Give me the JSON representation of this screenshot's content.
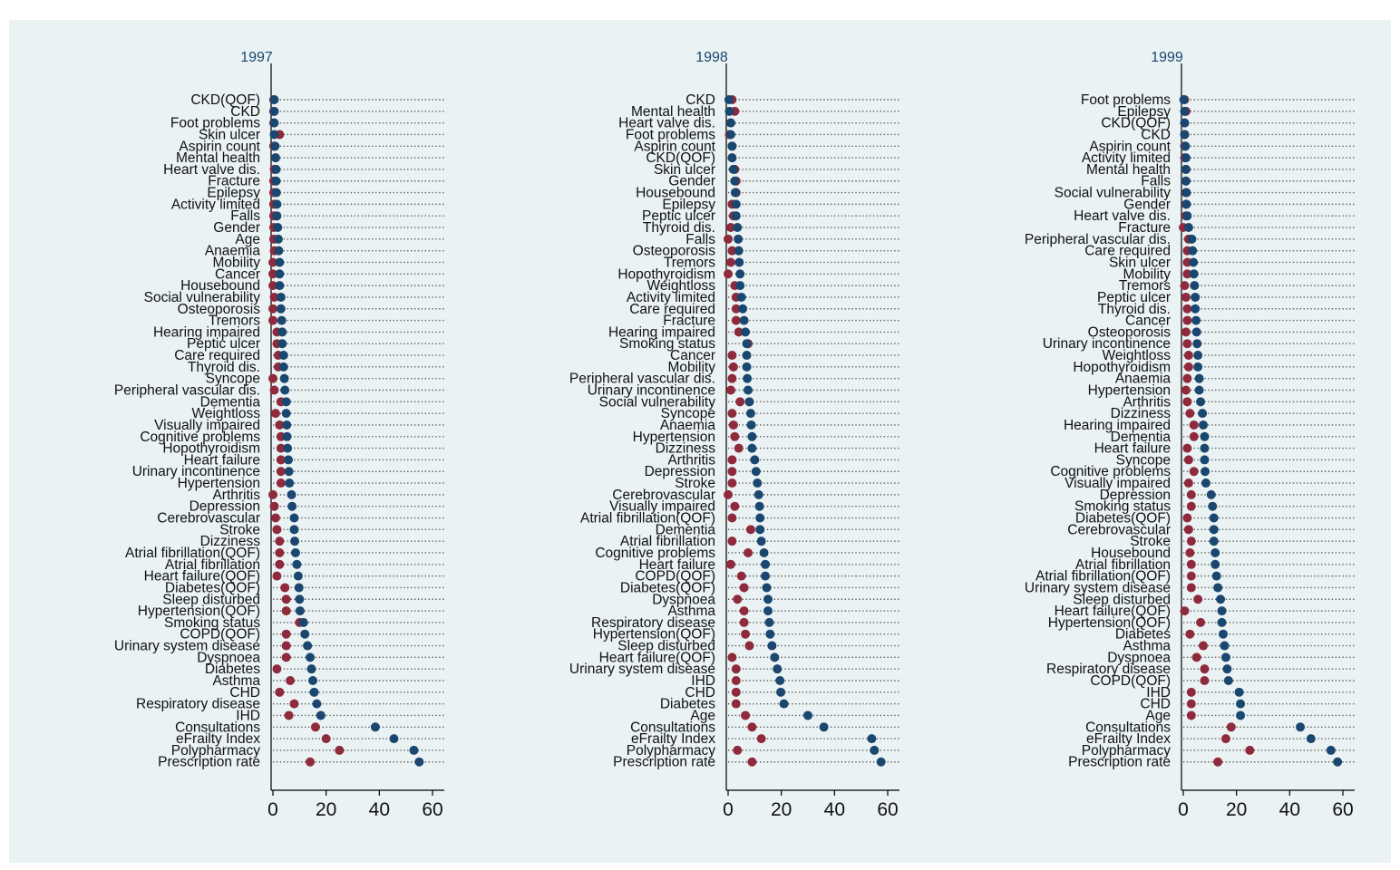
{
  "header_text": "",
  "chart_data": {
    "type": "dot",
    "xlim": [
      0,
      60
    ],
    "xticks": [
      "0",
      "20",
      "40",
      "60"
    ],
    "series_colors": {
      "marker_a": "#8f2a3c",
      "marker_b": "#1a476f"
    },
    "panels": [
      {
        "title": "1997",
        "categories": [
          "CKD(QOF)",
          "CKD",
          "Foot problems",
          "Skin ulcer",
          "Aspirin count",
          "Mental health",
          "Heart valve dis.",
          "Fracture",
          "Epilepsy",
          "Activity limited",
          "Falls",
          "Gender",
          "Age",
          "Anaemia",
          "Mobility",
          "Cancer",
          "Housebound",
          "Social vulnerability",
          "Osteoporosis",
          "Tremors",
          "Hearing impaired",
          "Peptic ulcer",
          "Care required",
          "Thyroid dis.",
          "Syncope",
          "Peripheral vascular dis.",
          "Dementia",
          "Weightloss",
          "Visually impaired",
          "Cognitive problems",
          "Hopothyroidism",
          "Heart failure",
          "Urinary incontinence",
          "Hypertension",
          "Arthritis",
          "Depression",
          "Cerebrovascular",
          "Stroke",
          "Dizziness",
          "Atrial fibrillation(QOF)",
          "Atrial fibrillation",
          "Heart failure(QOF)",
          "Diabetes(QOF)",
          "Sleep disturbed",
          "Hypertension(QOF)",
          "Smoking status",
          "COPD(QOF)",
          "Urinary system disease",
          "Dyspnoea",
          "Diabetes",
          "Asthma",
          "CHD",
          "Respiratory disease",
          "IHD",
          "Consultations",
          "eFrailty Index",
          "Polypharmacy",
          "Prescription rate"
        ],
        "values_a": [
          0.3,
          0.3,
          0.3,
          2.5,
          0.3,
          1,
          0.5,
          0.3,
          0.3,
          0.3,
          0.3,
          0.3,
          0.3,
          0.5,
          0,
          0,
          0,
          0.5,
          0,
          0,
          1.5,
          1.5,
          2,
          2,
          0,
          0.5,
          3,
          1,
          2.5,
          3,
          3,
          3,
          3,
          3,
          0,
          0.5,
          1,
          1.5,
          2.5,
          2.5,
          2.5,
          1.5,
          4.5,
          5,
          5,
          10,
          5,
          5,
          5,
          1.5,
          6.5,
          2.5,
          8,
          6,
          16,
          20,
          25,
          14
        ],
        "values_b": [
          0.5,
          0.5,
          0.5,
          0.5,
          0.8,
          1,
          1.2,
          1.2,
          1.3,
          1.5,
          1.5,
          1.8,
          2,
          2.2,
          2.5,
          2.5,
          2.5,
          3,
          3,
          3.3,
          3.5,
          3.5,
          4,
          4,
          4.3,
          4.5,
          5,
          5,
          5.2,
          5.3,
          5.5,
          5.8,
          6,
          6.2,
          7,
          7.2,
          8,
          8,
          8.2,
          8.5,
          9,
          9.5,
          9.8,
          10,
          10.2,
          11.5,
          12,
          13,
          14,
          14.5,
          15,
          15.5,
          16.5,
          18,
          38.5,
          45.5,
          53,
          55
        ]
      },
      {
        "title": "1998",
        "categories": [
          "CKD",
          "Mental health",
          "Heart valve dis.",
          "Foot problems",
          "Aspirin count",
          "CKD(QOF)",
          "Skin ulcer",
          "Gender",
          "Housebound",
          "Epilepsy",
          "Peptic ulcer",
          "Thyroid dis.",
          "Falls",
          "Osteoporosis",
          "Tremors",
          "Hopothyroidism",
          "Weightloss",
          "Activity limited",
          "Care required",
          "Fracture",
          "Hearing impaired",
          "Smoking status",
          "Cancer",
          "Mobility",
          "Peripheral vascular dis.",
          "Urinary incontinence",
          "Social vulnerability",
          "Syncope",
          "Anaemia",
          "Hypertension",
          "Dizziness",
          "Arthritis",
          "Depression",
          "Stroke",
          "Cerebrovascular",
          "Visually impaired",
          "Atrial fibrillation(QOF)",
          "Dementia",
          "Atrial fibrillation",
          "Cognitive problems",
          "Heart failure",
          "COPD(QOF)",
          "Diabetes(QOF)",
          "Dyspnoea",
          "Asthma",
          "Respiratory disease",
          "Hypertension(QOF)",
          "Sleep disturbed",
          "Heart failure(QOF)",
          "Urinary system disease",
          "IHD",
          "CHD",
          "Diabetes",
          "Age",
          "Consultations",
          "eFrailty Index",
          "Polypharmacy",
          "Prescription rate"
        ],
        "values_a": [
          1.5,
          2.5,
          1,
          0.5,
          1.5,
          1.5,
          2.5,
          3,
          3,
          1.5,
          2,
          1,
          0,
          1.5,
          1,
          0,
          2.5,
          3,
          3,
          3,
          4,
          7.5,
          1.5,
          2,
          1.5,
          1,
          4.5,
          1.5,
          2,
          2.5,
          4,
          1.5,
          1.5,
          1.5,
          0,
          2.5,
          1.5,
          8.5,
          1.5,
          7.5,
          1,
          5,
          6,
          3.5,
          6,
          6,
          6.5,
          8,
          1.5,
          3,
          3,
          3,
          3,
          6.5,
          9,
          12.5,
          3.5,
          9
        ],
        "values_b": [
          0.3,
          0.5,
          1,
          1,
          1.5,
          1.5,
          2,
          2.5,
          2.7,
          3,
          3,
          3.5,
          3.8,
          4,
          4.2,
          4.5,
          4.5,
          5,
          5.5,
          6,
          6.5,
          7,
          7,
          7,
          7.2,
          7.5,
          8,
          8.5,
          8.7,
          9,
          9,
          10,
          10.5,
          11,
          11.5,
          11.8,
          12,
          12,
          12.5,
          13.5,
          14,
          14,
          14.5,
          15,
          15,
          15.5,
          15.8,
          16.5,
          17.5,
          18.5,
          19.5,
          19.8,
          21,
          30,
          36,
          54,
          55,
          57.5
        ]
      },
      {
        "title": "1999",
        "categories": [
          "Foot problems",
          "Epilepsy",
          "CKD(QOF)",
          "CKD",
          "Aspirin count",
          "Activity limited",
          "Mental health",
          "Falls",
          "Social vulnerability",
          "Gender",
          "Heart valve dis.",
          "Fracture",
          "Peripheral vascular dis.",
          "Care required",
          "Skin ulcer",
          "Mobility",
          "Tremors",
          "Peptic ulcer",
          "Thyroid dis.",
          "Cancer",
          "Osteoporosis",
          "Urinary incontinence",
          "Weightloss",
          "Hopothyroidism",
          "Anaemia",
          "Hypertension",
          "Arthritis",
          "Dizziness",
          "Hearing impaired",
          "Dementia",
          "Heart failure",
          "Syncope",
          "Cognitive problems",
          "Visually impaired",
          "Depression",
          "Smoking status",
          "Diabetes(QOF)",
          "Cerebrovascular",
          "Stroke",
          "Housebound",
          "Atrial fibrillation",
          "Atrial fibrillation(QOF)",
          "Urinary system disease",
          "Sleep disturbed",
          "Heart failure(QOF)",
          "Hypertension(QOF)",
          "Diabetes",
          "Asthma",
          "Dyspnoea",
          "Respiratory disease",
          "COPD(QOF)",
          "IHD",
          "CHD",
          "Age",
          "Consultations",
          "eFrailty Index",
          "Polypharmacy",
          "Prescription rate"
        ],
        "values_a": [
          0.5,
          1,
          0.5,
          0.5,
          0.5,
          0.5,
          1,
          1,
          1,
          1,
          1,
          0,
          2,
          1.5,
          1.5,
          1.5,
          0.5,
          1,
          1.5,
          1.5,
          1,
          1.5,
          2,
          2,
          1.5,
          1,
          1.5,
          2.5,
          4,
          4,
          1.5,
          2,
          4,
          2,
          3,
          3,
          1.5,
          2,
          3,
          2.5,
          3,
          3,
          3,
          5.5,
          0.5,
          6.5,
          2.5,
          7.5,
          5,
          8,
          8,
          3,
          3,
          3,
          18,
          16,
          25,
          13
        ],
        "values_b": [
          0.2,
          0.5,
          0.5,
          0.5,
          0.8,
          1,
          1,
          1,
          1.2,
          1.2,
          1.5,
          2,
          3.2,
          3.5,
          3.8,
          4,
          4.2,
          4.5,
          4.5,
          4.8,
          5,
          5.2,
          5.5,
          5.5,
          6,
          6,
          6.5,
          7.2,
          7.5,
          8,
          8,
          8,
          8.2,
          8.5,
          10.5,
          11,
          11.5,
          11.5,
          11.5,
          12,
          12,
          12.5,
          13,
          14,
          14.5,
          14.5,
          15,
          15.5,
          16,
          16.5,
          17,
          21,
          21.5,
          21.5,
          44,
          48,
          55.5,
          58
        ]
      }
    ]
  }
}
